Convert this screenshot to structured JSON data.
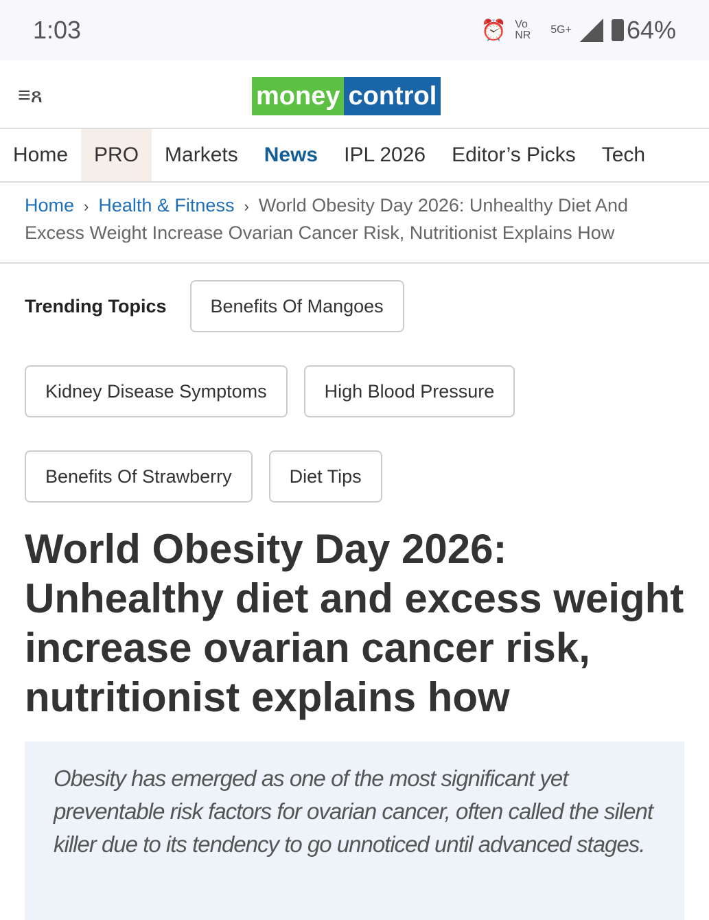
{
  "status": {
    "time": "1:03",
    "network": "Vo NR",
    "signal": "5G+",
    "battery": "64%"
  },
  "header": {
    "logo_left": "money",
    "logo_right": "control",
    "logo_colors": {
      "green": "#5cc043",
      "blue": "#1a64a8"
    }
  },
  "nav": [
    {
      "label": "Home"
    },
    {
      "label": "PRO"
    },
    {
      "label": "Markets"
    },
    {
      "label": "News"
    },
    {
      "label": "IPL 2026"
    },
    {
      "label": "Editor’s Picks"
    },
    {
      "label": "Tech"
    }
  ],
  "breadcrumb": {
    "home": "Home",
    "section": "Health & Fitness",
    "current": "World Obesity Day 2026: Unhealthy Diet And Excess Weight Increase Ovarian Cancer Risk, Nutritionist Explains How"
  },
  "trending": {
    "label": "Trending Topics",
    "topics": [
      "Benefits Of Mangoes",
      "Kidney Disease Symptoms",
      "High Blood Pressure",
      "Benefits Of Strawberry",
      "Diet Tips"
    ]
  },
  "article": {
    "title": "World Obesity Day 2026: Unhealthy diet and excess weight increase ovarian cancer risk, nutritionist explains how",
    "summary": "Obesity has emerged as one of the most significant yet preventable risk factors for ovarian cancer, often called the silent killer due to its tendency to go unnoticed until advanced stages."
  }
}
